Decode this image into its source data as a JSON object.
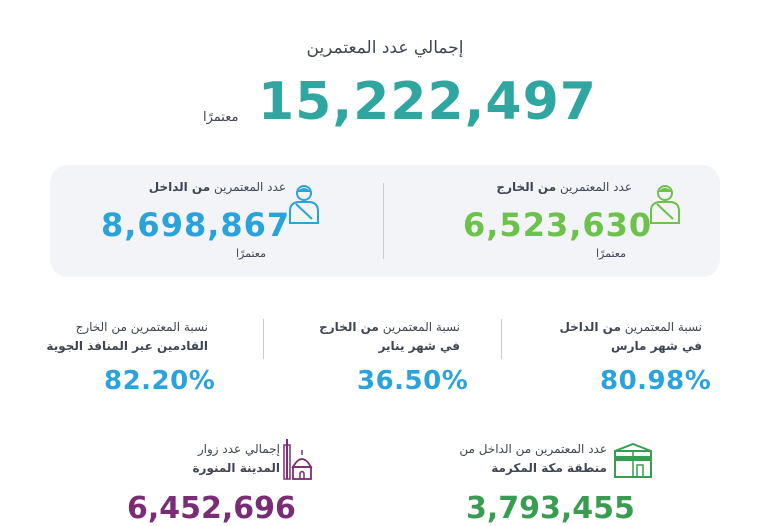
{
  "header": {
    "title": "إجمالي عدد المعتمرين",
    "total": "15,222,497",
    "unit": "معتمرًا"
  },
  "card": {
    "outside": {
      "label_prefix": "عدد المعتمرين",
      "label_bold": "من الخارج",
      "value": "6,523,630",
      "unit": "معتمرًا",
      "icon": "pilgrim-icon"
    },
    "inside": {
      "label_prefix": "عدد المعتمرين",
      "label_bold": "من الداخل",
      "value": "8,698,867",
      "unit": "معتمرًا",
      "icon": "pilgrim-icon"
    }
  },
  "stats": [
    {
      "line1_prefix": "نسبة المعتمرين",
      "line1_bold": "من الداخل",
      "line2": "في شهر مارس",
      "value": "80.98%"
    },
    {
      "line1_prefix": "نسبة المعتمرين",
      "line1_bold": "من الخارج",
      "line2": "في شهر يناير",
      "value": "36.50%"
    },
    {
      "line1_prefix": "نسبة المعتمرين من الخارج",
      "line1_bold": "",
      "line2": "القادمين عبر المنافذ الجوية",
      "value": "82.20%"
    }
  ],
  "bottom": {
    "makkah": {
      "line1": "عدد المعتمرين من الداخل من",
      "line2": "منطقة مكة المكرمة",
      "value": "3,793,455",
      "icon": "kaaba-icon"
    },
    "madinah": {
      "line1": "إجمالي عدد زوار",
      "line2": "المدينة المنورة",
      "value": "6,452,696",
      "icon": "mosque-icon"
    }
  },
  "colors": {
    "teal": "#2fa69f",
    "green": "#6cc24a",
    "blue": "#2aa3dc",
    "dark_green": "#3a9c51",
    "purple": "#7a2d76",
    "card_bg": "#f3f4f7"
  }
}
